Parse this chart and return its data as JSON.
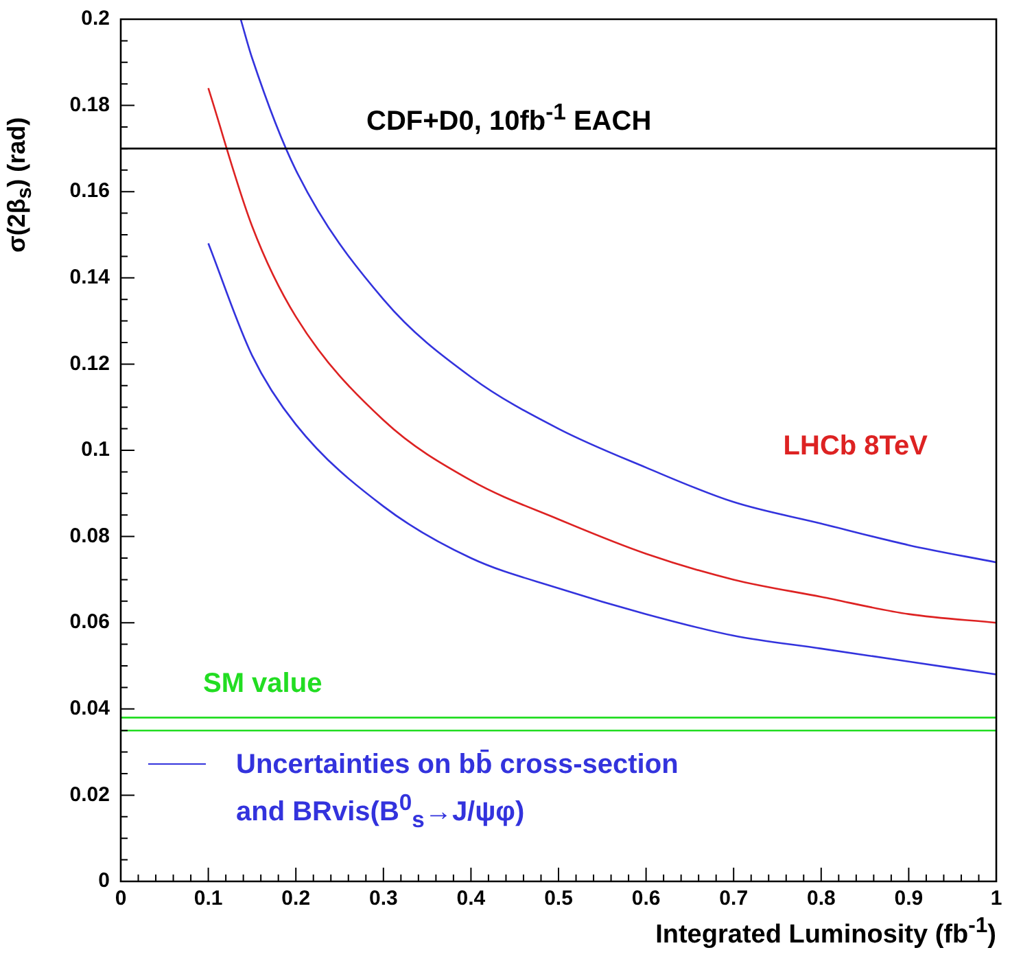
{
  "chart_data": {
    "type": "line",
    "xlabel": "Integrated Luminosity (fb$^{-1}$)",
    "ylabel": "σ(2β$_{s}$) (rad)",
    "xlim": [
      0,
      1
    ],
    "ylim": [
      0,
      0.2
    ],
    "xticks": [
      0,
      {
        "value": 0.02,
        "label": null
      },
      {
        "value": 0.04,
        "label": null
      },
      {
        "value": 0.06,
        "label": null
      },
      {
        "value": 0.08,
        "label": null
      },
      0.1,
      {
        "value": 0.12,
        "label": null
      },
      {
        "value": 0.14,
        "label": null
      },
      {
        "value": 0.16,
        "label": null
      },
      {
        "value": 0.18,
        "label": null
      },
      0.2,
      {
        "value": 0.22,
        "label": null
      },
      {
        "value": 0.24,
        "label": null
      },
      {
        "value": 0.26,
        "label": null
      },
      {
        "value": 0.28,
        "label": null
      },
      0.3,
      {
        "value": 0.32,
        "label": null
      },
      {
        "value": 0.34,
        "label": null
      },
      {
        "value": 0.36,
        "label": null
      },
      {
        "value": 0.38,
        "label": null
      },
      0.4,
      {
        "value": 0.42,
        "label": null
      },
      {
        "value": 0.44,
        "label": null
      },
      {
        "value": 0.46,
        "label": null
      },
      {
        "value": 0.48,
        "label": null
      },
      0.5,
      {
        "value": 0.52,
        "label": null
      },
      {
        "value": 0.54,
        "label": null
      },
      {
        "value": 0.56,
        "label": null
      },
      {
        "value": 0.58,
        "label": null
      },
      0.6,
      {
        "value": 0.62,
        "label": null
      },
      {
        "value": 0.64,
        "label": null
      },
      {
        "value": 0.66,
        "label": null
      },
      {
        "value": 0.68,
        "label": null
      },
      0.7,
      {
        "value": 0.72,
        "label": null
      },
      {
        "value": 0.74,
        "label": null
      },
      {
        "value": 0.76,
        "label": null
      },
      {
        "value": 0.78,
        "label": null
      },
      0.8,
      {
        "value": 0.82,
        "label": null
      },
      {
        "value": 0.84,
        "label": null
      },
      {
        "value": 0.86,
        "label": null
      },
      {
        "value": 0.88,
        "label": null
      },
      0.9,
      {
        "value": 0.92,
        "label": null
      },
      {
        "value": 0.94,
        "label": null
      },
      {
        "value": 0.96,
        "label": null
      },
      {
        "value": 0.98,
        "label": null
      },
      1
    ],
    "yticks": [
      0,
      {
        "value": 0.005,
        "label": null
      },
      {
        "value": 0.01,
        "label": null
      },
      {
        "value": 0.015,
        "label": null
      },
      0.02,
      {
        "value": 0.025,
        "label": null
      },
      {
        "value": 0.03,
        "label": null
      },
      {
        "value": 0.035,
        "label": null
      },
      0.04,
      {
        "value": 0.045,
        "label": null
      },
      {
        "value": 0.05,
        "label": null
      },
      {
        "value": 0.055,
        "label": null
      },
      0.06,
      {
        "value": 0.065,
        "label": null
      },
      {
        "value": 0.07,
        "label": null
      },
      {
        "value": 0.075,
        "label": null
      },
      0.08,
      {
        "value": 0.085,
        "label": null
      },
      {
        "value": 0.09,
        "label": null
      },
      {
        "value": 0.095,
        "label": null
      },
      0.1,
      {
        "value": 0.105,
        "label": null
      },
      {
        "value": 0.11,
        "label": null
      },
      {
        "value": 0.115,
        "label": null
      },
      0.12,
      {
        "value": 0.125,
        "label": null
      },
      {
        "value": 0.13,
        "label": null
      },
      {
        "value": 0.135,
        "label": null
      },
      0.14,
      {
        "value": 0.145,
        "label": null
      },
      {
        "value": 0.15,
        "label": null
      },
      {
        "value": 0.155,
        "label": null
      },
      0.16,
      {
        "value": 0.165,
        "label": null
      },
      {
        "value": 0.17,
        "label": null
      },
      {
        "value": 0.175,
        "label": null
      },
      0.18,
      {
        "value": 0.185,
        "label": null
      },
      {
        "value": 0.19,
        "label": null
      },
      {
        "value": 0.195,
        "label": null
      },
      0.2
    ],
    "marker": "none",
    "legend": "bottom left",
    "series": [
      {
        "color": "#3333dd",
        "x": [
          0.137,
          0.15,
          0.2,
          0.3,
          0.4,
          0.5,
          0.6,
          0.7,
          0.8,
          0.9,
          1
        ],
        "values": [
          0.2,
          0.191,
          0.165,
          0.135,
          0.117,
          0.105,
          0.096,
          0.088,
          0.083,
          0.078,
          0.074
        ]
      },
      {
        "name": "LHCb 8TeV",
        "color": "#dd2222",
        "x": [
          0.1,
          0.15,
          0.2,
          0.3,
          0.4,
          0.5,
          0.6,
          0.7,
          0.8,
          0.9,
          1
        ],
        "values": [
          0.184,
          0.152,
          0.131,
          0.107,
          0.093,
          0.084,
          0.076,
          0.07,
          0.066,
          0.062,
          0.06
        ]
      },
      {
        "name": "Uncertainties on bb̄  cross-section and BRvis(B$^{0}$$_{s}$→J/ψφ)",
        "color": "#3333dd",
        "x": [
          0.1,
          0.15,
          0.2,
          0.3,
          0.4,
          0.5,
          0.6,
          0.7,
          0.8,
          0.9,
          1
        ],
        "values": [
          0.148,
          0.122,
          0.106,
          0.087,
          0.075,
          0.068,
          0.062,
          0.057,
          0.054,
          0.051,
          0.048
        ]
      }
    ],
    "ref_lines": [
      {
        "axis": "y",
        "value": 0.17,
        "label": "CDF+D0, 10fb$^{-1}$ EACH",
        "color": "#000000"
      },
      {
        "axis": "y",
        "value": 0.038,
        "label": "SM value",
        "color": "#22dd22"
      },
      {
        "axis": "y",
        "value": 0.035,
        "color": "#22dd22"
      }
    ]
  }
}
